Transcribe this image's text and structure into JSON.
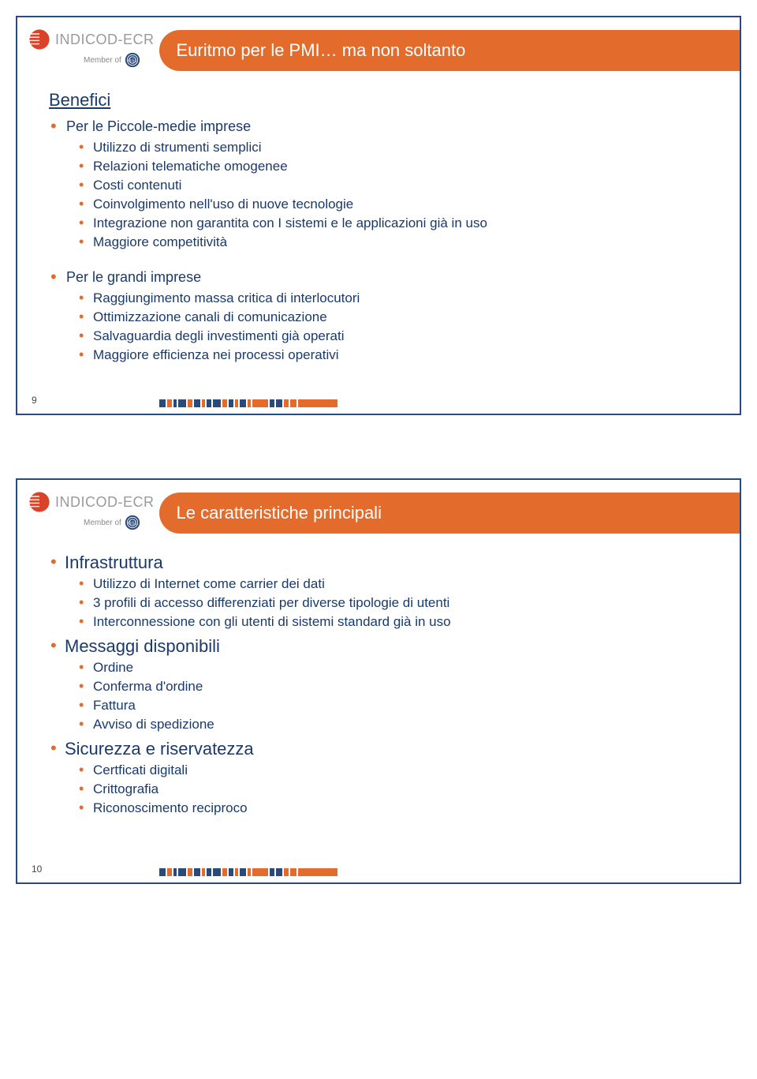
{
  "brand": {
    "name": "INDICOD-ECR",
    "member_of": "Member of",
    "gs1": "GS1"
  },
  "footer_colors": [
    "#2a4a7a",
    "#e36c2c",
    "#2a4a7a",
    "#2a4a7a",
    "#e36c2c",
    "#2a4a7a",
    "#e36c2c",
    "#2a4a7a",
    "#2a4a7a",
    "#e36c2c",
    "#2a4a7a",
    "#e36c2c",
    "#2a4a7a",
    "#e36c2c",
    "#e36c2c",
    "#2a4a7a",
    "#2a4a7a",
    "#e36c2c",
    "#e36c2c",
    "#e36c2c"
  ],
  "footer_widths": [
    8,
    6,
    4,
    10,
    6,
    8,
    4,
    6,
    10,
    6,
    6,
    4,
    8,
    4,
    20,
    6,
    8,
    6,
    8,
    50
  ],
  "slide9": {
    "title": "Euritmo per le PMI… ma non soltanto",
    "heading": "Benefici",
    "group1_label": "Per le Piccole-medie imprese",
    "group1_items": [
      "Utilizzo di strumenti semplici",
      "Relazioni telematiche omogenee",
      "Costi contenuti",
      "Coinvolgimento nell'uso di nuove tecnologie",
      "Integrazione non garantita con I sistemi e le applicazioni già in uso",
      "Maggiore competitività"
    ],
    "group2_label": "Per le grandi imprese",
    "group2_items": [
      "Raggiungimento massa critica di interlocutori",
      "Ottimizzazione canali di comunicazione",
      "Salvaguardia degli investimenti già operati",
      "Maggiore efficienza nei processi operativi"
    ],
    "page": "9"
  },
  "slide10": {
    "title": "Le caratteristiche principali",
    "sec1_label": "Infrastruttura",
    "sec1_items": [
      "Utilizzo di Internet come carrier dei dati",
      "3 profili di accesso differenziati per diverse tipologie di utenti",
      "Interconnessione con gli utenti di sistemi standard già in uso"
    ],
    "sec2_label": "Messaggi disponibili",
    "sec2_items": [
      "Ordine",
      "Conferma d'ordine",
      "Fattura",
      "Avviso di spedizione"
    ],
    "sec3_label": "Sicurezza e riservatezza",
    "sec3_items": [
      "Certficati digitali",
      "Crittografia",
      "Riconoscimento reciproco"
    ],
    "page": "10"
  }
}
